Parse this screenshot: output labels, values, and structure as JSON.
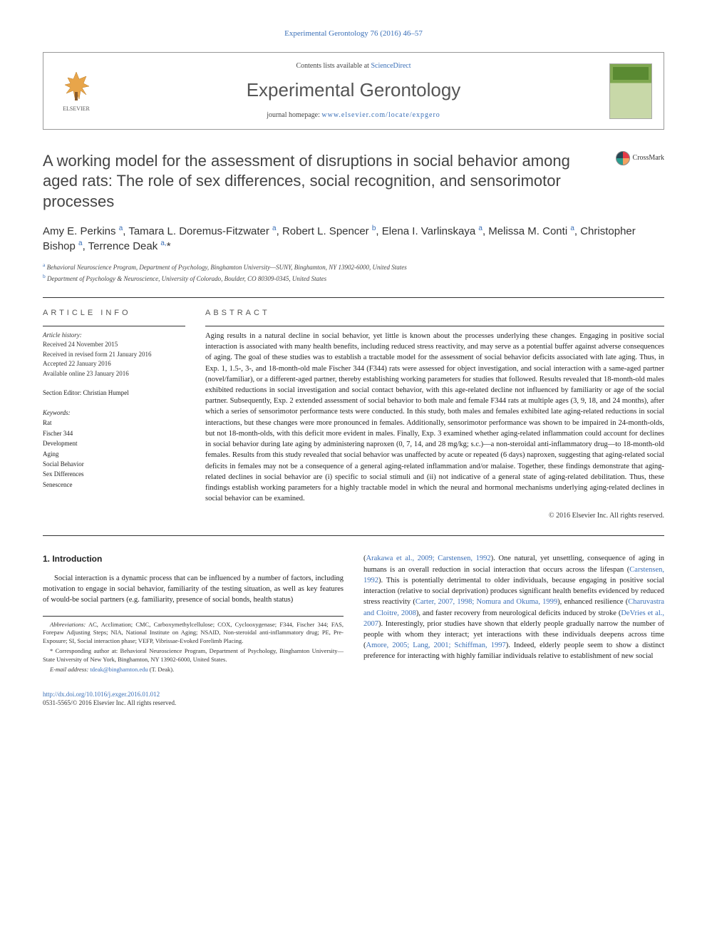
{
  "top_link": {
    "journal": "Experimental Gerontology 76 (2016) 46–57",
    "url_text": "Experimental Gerontology 76 (2016) 46–57"
  },
  "header": {
    "contents_text": "Contents lists available at ",
    "contents_link": "ScienceDirect",
    "journal_name": "Experimental Gerontology",
    "homepage_label": "journal homepage: ",
    "homepage_url": "www.elsevier.com/locate/expgero",
    "elsevier_label": "ELSEVIER"
  },
  "crossmark": {
    "label": "CrossMark"
  },
  "title": "A working model for the assessment of disruptions in social behavior among aged rats: The role of sex differences, social recognition, and sensorimotor processes",
  "authors_html": "Amy E. Perkins <sup>a</sup>, Tamara L. Doremus-Fitzwater <sup>a</sup>, Robert L. Spencer <sup>b</sup>, Elena I. Varlinskaya <sup>a</sup>, Melissa M. Conti <sup>a</sup>, Christopher Bishop <sup>a</sup>, Terrence Deak <sup>a,</sup>*",
  "affiliations": [
    {
      "sup": "a",
      "text": " Behavioral Neuroscience Program, Department of Psychology, Binghamton University—SUNY, Binghamton, NY 13902-6000, United States"
    },
    {
      "sup": "b",
      "text": " Department of Psychology & Neuroscience, University of Colorado, Boulder, CO 80309-0345, United States"
    }
  ],
  "article_info": {
    "heading": "ARTICLE INFO",
    "history_label": "Article history:",
    "history": [
      "Received 24 November 2015",
      "Received in revised form 21 January 2016",
      "Accepted 22 January 2016",
      "Available online 23 January 2016"
    ],
    "editor_label": "Section Editor: ",
    "editor": "Christian Humpel",
    "keywords_label": "Keywords:",
    "keywords": [
      "Rat",
      "Fischer 344",
      "Development",
      "Aging",
      "Social Behavior",
      "Sex Differences",
      "Senescence"
    ]
  },
  "abstract": {
    "heading": "ABSTRACT",
    "text": "Aging results in a natural decline in social behavior, yet little is known about the processes underlying these changes. Engaging in positive social interaction is associated with many health benefits, including reduced stress reactivity, and may serve as a potential buffer against adverse consequences of aging. The goal of these studies was to establish a tractable model for the assessment of social behavior deficits associated with late aging. Thus, in Exp. 1, 1.5-, 3-, and 18-month-old male Fischer 344 (F344) rats were assessed for object investigation, and social interaction with a same-aged partner (novel/familiar), or a different-aged partner, thereby establishing working parameters for studies that followed. Results revealed that 18-month-old males exhibited reductions in social investigation and social contact behavior, with this age-related decline not influenced by familiarity or age of the social partner. Subsequently, Exp. 2 extended assessment of social behavior to both male and female F344 rats at multiple ages (3, 9, 18, and 24 months), after which a series of sensorimotor performance tests were conducted. In this study, both males and females exhibited late aging-related reductions in social interactions, but these changes were more pronounced in females. Additionally, sensorimotor performance was shown to be impaired in 24-month-olds, but not 18-month-olds, with this deficit more evident in males. Finally, Exp. 3 examined whether aging-related inflammation could account for declines in social behavior during late aging by administering naproxen (0, 7, 14, and 28 mg/kg; s.c.)—a non-steroidal anti-inflammatory drug—to 18-month-old females. Results from this study revealed that social behavior was unaffected by acute or repeated (6 days) naproxen, suggesting that aging-related social deficits in females may not be a consequence of a general aging-related inflammation and/or malaise. Together, these findings demonstrate that aging-related declines in social behavior are (i) specific to social stimuli and (ii) not indicative of a general state of aging-related debilitation. Thus, these findings establish working parameters for a highly tractable model in which the neural and hormonal mechanisms underlying aging-related declines in social behavior can be examined.",
    "copyright": "© 2016 Elsevier Inc. All rights reserved."
  },
  "intro": {
    "heading": "1. Introduction",
    "para1": "Social interaction is a dynamic process that can be influenced by a number of factors, including motivation to engage in social behavior, familiarity of the testing situation, as well as key features of would-be social partners (e.g. familiarity, presence of social bonds, health status)",
    "col2_a": "(",
    "col2_ref1": "Arakawa et al., 2009; Carstensen, 1992",
    "col2_b": "). One natural, yet unsettling, consequence of aging in humans is an overall reduction in social interaction that occurs across the lifespan (",
    "col2_ref2": "Carstensen, 1992",
    "col2_c": "). This is potentially detrimental to older individuals, because engaging in positive social interaction (relative to social deprivation) produces significant health benefits evidenced by reduced stress reactivity (",
    "col2_ref3": "Carter, 2007, 1998; Nomura and Okuma, 1999",
    "col2_d": "), enhanced resilience (",
    "col2_ref4": "Charuvastra and Cloitre, 2008",
    "col2_e": "), and faster recovery from neurological deficits induced by stroke (",
    "col2_ref5": "DeVries et al., 2007",
    "col2_f": "). Interestingly, prior studies have shown that elderly people gradually narrow the number of people with whom they interact; yet interactions with these individuals deepens across time (",
    "col2_ref6": "Amore, 2005; Lang, 2001; Schiffman, 1997",
    "col2_g": "). Indeed, elderly people seem to show a distinct preference for interacting with highly familiar individuals relative to establishment of new social"
  },
  "footnotes": {
    "abbrev_label": "Abbreviations:",
    "abbrev": " AC, Acclimation; CMC, Carboxymethylcellulose; COX, Cyclooxygenase; F344, Fischer 344; FAS, Forepaw Adjusting Steps; NIA, National Institute on Aging; NSAID, Non-steroidal anti-inflammatory drug; PE, Pre-Exposure; SI, Social interaction phase; VEFP, Vibrissae-Evoked Forelimb Placing.",
    "corr_label": "* Corresponding author at:",
    "corr": " Behavioral Neuroscience Program, Department of Psychology, Binghamton University—State University of New York, Binghamton, NY 13902-6000, United States.",
    "email_label": "E-mail address: ",
    "email": "tdeak@binghamton.edu",
    "email_suffix": " (T. Deak)."
  },
  "footer": {
    "doi": "http://dx.doi.org/10.1016/j.exger.2016.01.012",
    "issn_line": "0531-5565/© 2016 Elsevier Inc. All rights reserved."
  },
  "colors": {
    "link": "#3a6fb7",
    "text": "#222222",
    "heading": "#555555",
    "rule": "#333333",
    "cover_top": "#7fa850",
    "cover_bottom": "#c8d8a8"
  }
}
